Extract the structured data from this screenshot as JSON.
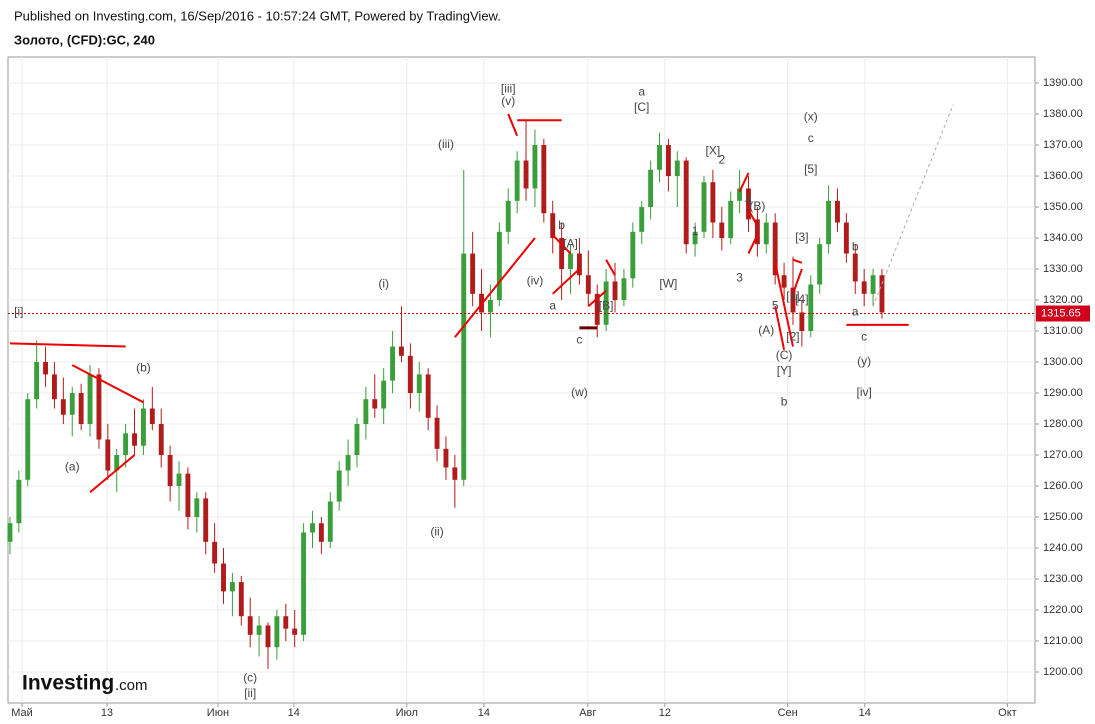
{
  "chart_data": {
    "type": "candlestick",
    "header": "Published on Investing.com, 16/Sep/2016 - 10:57:24 GMT, Powered by TradingView.",
    "symbol": "Золото, (CFD):GC, 240",
    "logo": "Investing",
    "logo_suffix": ".com",
    "up_color": "#3a9e3a",
    "down_color": "#b01c1c",
    "grid": true,
    "x": [
      0,
      1,
      2,
      3,
      4,
      5,
      6,
      7,
      8,
      9,
      10,
      11,
      12,
      13,
      14,
      15,
      16,
      17,
      18,
      19,
      20,
      21,
      22,
      23,
      24,
      25,
      26,
      27,
      28,
      29,
      30,
      31,
      32,
      33,
      34,
      35,
      36,
      37,
      38,
      39,
      40,
      41,
      42,
      43,
      44,
      45,
      46,
      47,
      48,
      49,
      50,
      51,
      52,
      53,
      54,
      55,
      56,
      57,
      58,
      59,
      60,
      61,
      62,
      63,
      64,
      65,
      66,
      67,
      68,
      69,
      70,
      71,
      72,
      73,
      74,
      75,
      76,
      77,
      78,
      79,
      80,
      81,
      82,
      83,
      84,
      85,
      86,
      87,
      88,
      89,
      90,
      91,
      92,
      93,
      94,
      95,
      96,
      97,
      98
    ],
    "ohlc": [
      [
        1242,
        1250,
        1238,
        1248
      ],
      [
        1248,
        1265,
        1245,
        1262
      ],
      [
        1262,
        1290,
        1260,
        1288
      ],
      [
        1288,
        1307,
        1285,
        1300
      ],
      [
        1300,
        1305,
        1292,
        1296
      ],
      [
        1296,
        1300,
        1285,
        1288
      ],
      [
        1288,
        1295,
        1280,
        1283
      ],
      [
        1283,
        1292,
        1276,
        1290
      ],
      [
        1290,
        1293,
        1278,
        1280
      ],
      [
        1280,
        1299,
        1276,
        1296
      ],
      [
        1296,
        1298,
        1272,
        1275
      ],
      [
        1275,
        1280,
        1262,
        1265
      ],
      [
        1265,
        1272,
        1258,
        1270
      ],
      [
        1270,
        1280,
        1266,
        1277
      ],
      [
        1277,
        1285,
        1270,
        1273
      ],
      [
        1273,
        1288,
        1270,
        1285
      ],
      [
        1285,
        1292,
        1278,
        1280
      ],
      [
        1280,
        1285,
        1266,
        1270
      ],
      [
        1270,
        1273,
        1255,
        1260
      ],
      [
        1260,
        1268,
        1252,
        1264
      ],
      [
        1264,
        1266,
        1246,
        1250
      ],
      [
        1250,
        1258,
        1245,
        1256
      ],
      [
        1256,
        1258,
        1238,
        1242
      ],
      [
        1242,
        1248,
        1232,
        1235
      ],
      [
        1235,
        1240,
        1222,
        1226
      ],
      [
        1226,
        1232,
        1218,
        1229
      ],
      [
        1229,
        1231,
        1215,
        1218
      ],
      [
        1218,
        1224,
        1208,
        1212
      ],
      [
        1212,
        1218,
        1205,
        1215
      ],
      [
        1215,
        1216,
        1201,
        1208
      ],
      [
        1208,
        1220,
        1204,
        1218
      ],
      [
        1218,
        1222,
        1210,
        1214
      ],
      [
        1214,
        1220,
        1208,
        1212
      ],
      [
        1212,
        1248,
        1210,
        1245
      ],
      [
        1245,
        1252,
        1240,
        1248
      ],
      [
        1248,
        1250,
        1238,
        1242
      ],
      [
        1242,
        1258,
        1240,
        1255
      ],
      [
        1255,
        1268,
        1252,
        1265
      ],
      [
        1265,
        1275,
        1260,
        1270
      ],
      [
        1270,
        1282,
        1266,
        1280
      ],
      [
        1280,
        1292,
        1275,
        1288
      ],
      [
        1288,
        1296,
        1282,
        1285
      ],
      [
        1285,
        1298,
        1280,
        1294
      ],
      [
        1294,
        1310,
        1290,
        1305
      ],
      [
        1305,
        1318,
        1300,
        1302
      ],
      [
        1302,
        1306,
        1285,
        1290
      ],
      [
        1290,
        1300,
        1284,
        1296
      ],
      [
        1296,
        1298,
        1278,
        1282
      ],
      [
        1282,
        1286,
        1268,
        1272
      ],
      [
        1272,
        1276,
        1262,
        1266
      ],
      [
        1266,
        1270,
        1253,
        1262
      ],
      [
        1262,
        1362,
        1260,
        1335
      ],
      [
        1335,
        1342,
        1318,
        1322
      ],
      [
        1322,
        1330,
        1310,
        1316
      ],
      [
        1316,
        1325,
        1308,
        1320
      ],
      [
        1320,
        1345,
        1318,
        1342
      ],
      [
        1342,
        1356,
        1338,
        1352
      ],
      [
        1352,
        1368,
        1348,
        1365
      ],
      [
        1365,
        1378,
        1352,
        1356
      ],
      [
        1356,
        1375,
        1350,
        1370
      ],
      [
        1370,
        1372,
        1345,
        1348
      ],
      [
        1348,
        1352,
        1335,
        1340
      ],
      [
        1340,
        1345,
        1320,
        1330
      ],
      [
        1330,
        1338,
        1322,
        1335
      ],
      [
        1335,
        1340,
        1325,
        1328
      ],
      [
        1328,
        1336,
        1318,
        1322
      ],
      [
        1322,
        1325,
        1308,
        1312
      ],
      [
        1312,
        1330,
        1310,
        1326
      ],
      [
        1326,
        1332,
        1316,
        1320
      ],
      [
        1320,
        1330,
        1318,
        1327
      ],
      [
        1327,
        1345,
        1324,
        1342
      ],
      [
        1342,
        1352,
        1338,
        1350
      ],
      [
        1350,
        1365,
        1346,
        1362
      ],
      [
        1362,
        1374,
        1358,
        1370
      ],
      [
        1370,
        1372,
        1355,
        1360
      ],
      [
        1360,
        1368,
        1350,
        1365
      ],
      [
        1365,
        1366,
        1335,
        1338
      ],
      [
        1338,
        1345,
        1334,
        1342
      ],
      [
        1342,
        1360,
        1340,
        1358
      ],
      [
        1358,
        1362,
        1340,
        1345
      ],
      [
        1345,
        1350,
        1336,
        1340
      ],
      [
        1340,
        1355,
        1338,
        1352
      ],
      [
        1352,
        1362,
        1348,
        1356
      ],
      [
        1356,
        1360,
        1342,
        1346
      ],
      [
        1346,
        1350,
        1334,
        1338
      ],
      [
        1338,
        1348,
        1335,
        1345
      ],
      [
        1345,
        1348,
        1325,
        1328
      ],
      [
        1328,
        1332,
        1320,
        1324
      ],
      [
        1324,
        1334,
        1312,
        1316
      ],
      [
        1316,
        1320,
        1305,
        1310
      ],
      [
        1310,
        1328,
        1308,
        1325
      ],
      [
        1325,
        1340,
        1322,
        1338
      ],
      [
        1338,
        1357,
        1335,
        1352
      ],
      [
        1352,
        1356,
        1342,
        1345
      ],
      [
        1345,
        1348,
        1332,
        1335
      ],
      [
        1335,
        1338,
        1322,
        1326
      ],
      [
        1326,
        1330,
        1318,
        1322
      ],
      [
        1322,
        1330,
        1318,
        1328
      ],
      [
        1328,
        1330,
        1314,
        1316
      ]
    ],
    "xlim": [
      -0.22,
      115.2
    ],
    "xticks": [
      {
        "value": 1.35,
        "label": "Май"
      },
      {
        "value": 10.9,
        "label": "13"
      },
      {
        "value": 23.37,
        "label": "Июн"
      },
      {
        "value": 31.9,
        "label": "14"
      },
      {
        "value": 44.6,
        "label": "Июл"
      },
      {
        "value": 53.26,
        "label": "14"
      },
      {
        "value": 64.94,
        "label": "Авг"
      },
      {
        "value": 73.6,
        "label": "12"
      },
      {
        "value": 87.4,
        "label": "Сен"
      },
      {
        "value": 96.07,
        "label": "14"
      },
      {
        "value": 112.1,
        "label": "Окт"
      }
    ],
    "ylim": [
      1190,
      1398.4
    ],
    "yticks": [
      {
        "value": 1200,
        "label": "1200.00"
      },
      {
        "value": 1210,
        "label": "1210.00"
      },
      {
        "value": 1220,
        "label": "1220.00"
      },
      {
        "value": 1230,
        "label": "1230.00"
      },
      {
        "value": 1240,
        "label": "1240.00"
      },
      {
        "value": 1250,
        "label": "1250.00"
      },
      {
        "value": 1260,
        "label": "1260.00"
      },
      {
        "value": 1270,
        "label": "1270.00"
      },
      {
        "value": 1280,
        "label": "1280.00"
      },
      {
        "value": 1290,
        "label": "1290.00"
      },
      {
        "value": 1300,
        "label": "1300.00"
      },
      {
        "value": 1310,
        "label": "1310.00"
      },
      {
        "value": 1320,
        "label": "1320.00"
      },
      {
        "value": 1330,
        "label": "1330.00"
      },
      {
        "value": 1340,
        "label": "1340.00"
      },
      {
        "value": 1350,
        "label": "1350.00"
      },
      {
        "value": 1360,
        "label": "1360.00"
      },
      {
        "value": 1370,
        "label": "1370.00"
      },
      {
        "value": 1380,
        "label": "1380.00"
      },
      {
        "value": 1390,
        "label": "1390.00"
      }
    ],
    "last_price": 1315.65,
    "annotations": [
      "[i]",
      "(a)",
      "(b)",
      "(c)",
      "[ii]",
      "(i)",
      "(ii)",
      "(iii)",
      "(iv)",
      "[iii]",
      "(v)",
      "a",
      "b",
      "[A]",
      "c",
      "(w)",
      "[B]",
      "a",
      "[C]",
      "[W]",
      "1",
      "[X]",
      "2",
      "3",
      "4",
      "(B)",
      "5",
      "(A)",
      "(C)",
      "[Y]",
      "b",
      "[1]",
      "[2]",
      "[3]",
      "[4]",
      "(x)",
      "c",
      "[5]",
      "b",
      "a",
      "c",
      "(y)",
      "[iv]"
    ]
  }
}
